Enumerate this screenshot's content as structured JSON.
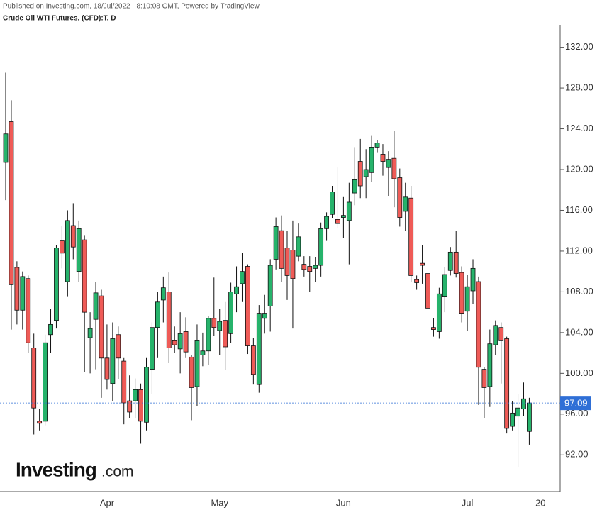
{
  "chart_data": {
    "type": "candlestick",
    "header": "Published on Investing.com, 18/Jul/2022 - 8:10:08 GMT, Powered by TradingView.",
    "title": "Crude Oil WTI Futures, (CFD):T, D",
    "logo": {
      "brand": "Investing",
      "suffix": ".com"
    },
    "categories": [
      null,
      null,
      null,
      null,
      null,
      null,
      null,
      null,
      null,
      null,
      null,
      null,
      null,
      null,
      null,
      null,
      null,
      null,
      "Apr",
      null,
      null,
      null,
      null,
      null,
      null,
      null,
      null,
      null,
      null,
      null,
      null,
      null,
      null,
      null,
      null,
      null,
      null,
      null,
      "May",
      null,
      null,
      null,
      null,
      null,
      null,
      null,
      null,
      null,
      null,
      null,
      null,
      null,
      null,
      null,
      null,
      null,
      null,
      null,
      null,
      null,
      "Jun",
      null,
      null,
      null,
      null,
      null,
      null,
      null,
      null,
      null,
      null,
      null,
      null,
      null,
      null,
      null,
      null,
      null,
      null,
      null,
      null,
      null,
      "Jul",
      null,
      null,
      null,
      null,
      null,
      null,
      null,
      null,
      null,
      null,
      null,
      null,
      "20"
    ],
    "open": [
      120.7,
      124.7,
      110.4,
      106.2,
      109.3,
      102.5,
      95.3,
      95.3,
      103.8,
      105.2,
      113,
      109,
      114.5,
      110,
      113.1,
      103.5,
      105.3,
      107.6,
      101.5,
      99.0,
      103.8,
      101.2,
      97.3,
      97.3,
      98.4,
      95.2,
      100.4,
      104.5,
      107.2,
      108,
      103.2,
      102.4,
      104.1,
      101.6,
      98.7,
      101.8,
      102.2,
      105.4,
      104.2,
      105.2,
      103.9,
      107.8,
      108.8,
      110.5,
      102.7,
      98.9,
      105.4,
      106.6,
      111.2,
      114,
      112.3,
      112.1,
      111.5,
      110.7,
      110.5,
      110.3,
      110.6,
      114.2,
      115.6,
      115.1,
      115.3,
      115,
      117.7,
      120.8,
      119.3,
      119.7,
      122.2,
      121.5,
      120.2,
      121.1,
      119.2,
      115.9,
      117.2,
      109.2,
      110.8,
      109.8,
      104.5,
      104.1,
      107.5,
      110.1,
      111.9,
      109.9,
      106.1,
      108.1,
      109,
      100.4,
      98.7,
      102.8,
      104.5,
      103.4,
      94.8,
      95.8,
      96.5,
      94.3,
      null,
      null
    ],
    "high": [
      129.5,
      126.8,
      111,
      110,
      109.6,
      103.9,
      96.5,
      103.8,
      106.3,
      112.6,
      114.5,
      116,
      116.7,
      115,
      113.5,
      106,
      109,
      108.2,
      104.8,
      105,
      104.6,
      101.5,
      99.8,
      99.5,
      99,
      101.5,
      105,
      108,
      109.5,
      109.9,
      104.6,
      106,
      105.5,
      101.8,
      104.8,
      104,
      105.6,
      109.4,
      106.3,
      107,
      108.9,
      110.5,
      111.8,
      110.7,
      103.5,
      106.7,
      107.7,
      111.2,
      115.3,
      115.5,
      114,
      115,
      114.7,
      111.5,
      111.5,
      111.4,
      114.8,
      115.8,
      118.4,
      120.2,
      117.3,
      118.7,
      122.2,
      123,
      122,
      123.3,
      122.9,
      122.5,
      121.8,
      123.8,
      120.1,
      118.7,
      118.4,
      109.6,
      112.6,
      110.8,
      105.4,
      108.4,
      110.4,
      112.4,
      114,
      110.5,
      109.7,
      111.2,
      109.5,
      100.6,
      104.3,
      105.2,
      105,
      103.6,
      97.3,
      98,
      99.1,
      97.6,
      null,
      null
    ],
    "low": [
      117,
      104.3,
      104.8,
      104.3,
      102,
      94.0,
      94.4,
      94.9,
      102,
      104.4,
      110.3,
      107.5,
      111.2,
      109,
      100.1,
      100,
      100.4,
      97.6,
      98.4,
      97.3,
      99.4,
      95,
      95.6,
      95.6,
      93.1,
      94.4,
      98,
      101.5,
      105,
      101,
      102,
      100,
      101.5,
      95.4,
      96.8,
      100.7,
      100.8,
      103.7,
      101.8,
      100.3,
      103,
      106,
      107,
      101.9,
      98.9,
      98.1,
      103.9,
      104.1,
      110.2,
      109,
      107.2,
      104.4,
      111,
      109.5,
      108,
      109,
      109.5,
      113,
      115.2,
      114.3,
      113.3,
      110.7,
      116.5,
      117.2,
      117.2,
      118.8,
      121.7,
      119.4,
      117.4,
      116.3,
      114.4,
      114,
      109,
      108.2,
      108.8,
      101.8,
      103.6,
      103.4,
      106,
      109.6,
      109.4,
      105,
      104.2,
      106.8,
      96.9,
      95.6,
      96.7,
      101.8,
      99,
      94.1,
      94.4,
      90.8,
      95.8,
      93,
      null,
      null
    ],
    "close": [
      123.5,
      108.7,
      106.2,
      109.5,
      103.0,
      96.6,
      95.1,
      103.0,
      104.8,
      112.3,
      111.8,
      115,
      112.4,
      114.2,
      106,
      104.4,
      107.9,
      101.5,
      99.4,
      103.4,
      101.5,
      97.1,
      96.2,
      98.4,
      95.3,
      100.6,
      104.5,
      107,
      108.4,
      102.5,
      102.8,
      103.9,
      102.1,
      98.6,
      103.2,
      102.2,
      105.4,
      104.5,
      105.1,
      102.6,
      108,
      108.5,
      110,
      102.7,
      99.9,
      105.9,
      105.9,
      110.6,
      114.4,
      110.3,
      109.6,
      109.3,
      113.4,
      110.2,
      110,
      110.6,
      114.2,
      115.4,
      117.8,
      114.7,
      115.5,
      116.8,
      119,
      118.4,
      120,
      122.2,
      122.6,
      120.8,
      121,
      119.1,
      115.3,
      117.3,
      109.6,
      108.9,
      110.6,
      106.4,
      104.3,
      107.8,
      109.7,
      111.9,
      109.8,
      105.9,
      108.5,
      110.3,
      100.6,
      98.6,
      102.9,
      104.7,
      103.2,
      94.6,
      96.1,
      96.6,
      97.5,
      97.09,
      null,
      null
    ],
    "up_color": "#26b36b",
    "down_color": "#ef5b57",
    "last_price": {
      "value": 97.09,
      "label": "97.09"
    },
    "last_price_color": "#2f6fd6",
    "ylim": [
      88.4,
      134.2
    ],
    "yticks": [
      {
        "value": 92,
        "label": "92.00"
      },
      {
        "value": 96,
        "label": "96.00"
      },
      {
        "value": 100,
        "label": "100.00"
      },
      {
        "value": 104,
        "label": "104.00"
      },
      {
        "value": 108,
        "label": "108.00"
      },
      {
        "value": 112,
        "label": "112.00"
      },
      {
        "value": 116,
        "label": "116.00"
      },
      {
        "value": 120,
        "label": "120.00"
      },
      {
        "value": 124,
        "label": "124.00"
      },
      {
        "value": 128,
        "label": "128.00"
      },
      {
        "value": 132,
        "label": "132.00"
      }
    ]
  }
}
